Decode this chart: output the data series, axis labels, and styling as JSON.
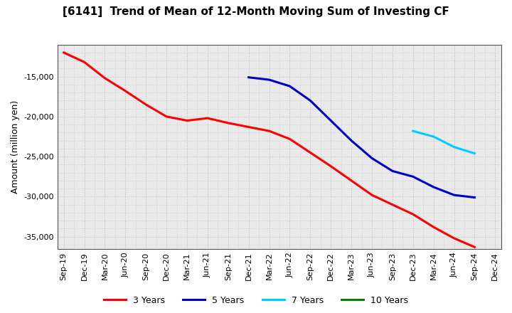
{
  "title": "[6141]  Trend of Mean of 12-Month Moving Sum of Investing CF",
  "ylabel": "Amount (million yen)",
  "background_color": "#ffffff",
  "plot_bg_color": "#eaeaea",
  "grid_color": "#bbbbbb",
  "ylim": [
    -36500,
    -11000
  ],
  "yticks": [
    -35000,
    -30000,
    -25000,
    -20000,
    -15000
  ],
  "series": {
    "3years": {
      "color": "#ff0000",
      "label": "3 Years",
      "x": [
        "Sep-19",
        "Dec-19",
        "Mar-20",
        "Jun-20",
        "Sep-20",
        "Dec-20",
        "Mar-21",
        "Jun-21",
        "Sep-21",
        "Dec-21",
        "Mar-22",
        "Jun-22",
        "Sep-22",
        "Dec-22",
        "Mar-23",
        "Jun-23",
        "Sep-23",
        "Dec-23",
        "Mar-24",
        "Jun-24",
        "Sep-24"
      ],
      "y": [
        -12000,
        -13200,
        -15200,
        -16800,
        -18500,
        -20000,
        -20500,
        -20200,
        -20800,
        -21300,
        -21800,
        -22800,
        -24500,
        -26200,
        -28000,
        -29800,
        -31000,
        -32200,
        -33800,
        -35200,
        -36300
      ]
    },
    "5years": {
      "color": "#0000cc",
      "label": "5 Years",
      "x": [
        "Dec-21",
        "Mar-22",
        "Jun-22",
        "Sep-22",
        "Dec-22",
        "Mar-23",
        "Jun-23",
        "Sep-23",
        "Dec-23",
        "Mar-24",
        "Jun-24",
        "Sep-24"
      ],
      "y": [
        -15100,
        -15400,
        -16200,
        -18000,
        -20500,
        -23000,
        -25200,
        -26800,
        -27500,
        -28800,
        -29800,
        -30100
      ]
    },
    "7years": {
      "color": "#00ccff",
      "label": "7 Years",
      "x": [
        "Dec-23",
        "Mar-24",
        "Jun-24",
        "Sep-24"
      ],
      "y": [
        -21800,
        -22500,
        -23800,
        -24600
      ]
    },
    "10years": {
      "color": "#008000",
      "label": "10 Years",
      "x": [],
      "y": []
    }
  },
  "all_xticks": [
    "Sep-19",
    "Dec-19",
    "Mar-20",
    "Jun-20",
    "Sep-20",
    "Dec-20",
    "Mar-21",
    "Jun-21",
    "Sep-21",
    "Dec-21",
    "Mar-22",
    "Jun-22",
    "Sep-22",
    "Dec-22",
    "Mar-23",
    "Jun-23",
    "Sep-23",
    "Dec-23",
    "Mar-24",
    "Jun-24",
    "Sep-24",
    "Dec-24"
  ]
}
